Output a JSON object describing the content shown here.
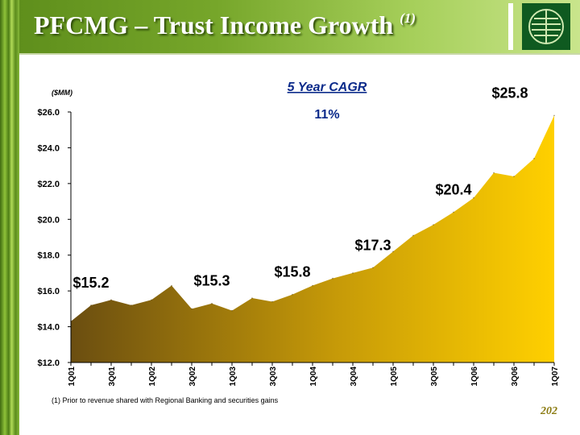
{
  "slide": {
    "title": "PFCMG – Trust Income Growth",
    "title_note": "(1)",
    "page_number": "202"
  },
  "colors": {
    "header_green": "#76a62a",
    "area_start": "#6b4e10",
    "area_end": "#ffd000",
    "label_cagr": "#0b2a8a"
  },
  "chart_data": {
    "type": "area",
    "title": "",
    "units_label": "($MM)",
    "cagr_title": "5 Year CAGR",
    "cagr_value": "11%",
    "xlabel": "",
    "ylabel": "",
    "ylim": [
      12.0,
      26.0
    ],
    "yticks": [
      "$12.0",
      "$14.0",
      "$16.0",
      "$18.0",
      "$20.0",
      "$22.0",
      "$24.0",
      "$26.0"
    ],
    "x": [
      "1Q01",
      "2Q01",
      "3Q01",
      "4Q01",
      "1Q02",
      "2Q02",
      "3Q02",
      "4Q02",
      "1Q03",
      "2Q03",
      "3Q03",
      "4Q03",
      "1Q04",
      "2Q04",
      "3Q04",
      "4Q04",
      "1Q05",
      "2Q05",
      "3Q05",
      "4Q05",
      "1Q06",
      "2Q06",
      "3Q06",
      "4Q06",
      "1Q07"
    ],
    "x_tick_labels": [
      "1Q01",
      "",
      "3Q01",
      "",
      "1Q02",
      "",
      "3Q02",
      "",
      "1Q03",
      "",
      "3Q03",
      "",
      "1Q04",
      "",
      "3Q04",
      "",
      "1Q05",
      "",
      "3Q05",
      "",
      "1Q06",
      "",
      "3Q06",
      "",
      "1Q07"
    ],
    "values": [
      14.3,
      15.2,
      15.5,
      15.2,
      15.5,
      16.3,
      15.0,
      15.3,
      14.9,
      15.6,
      15.4,
      15.8,
      16.3,
      16.7,
      17.0,
      17.3,
      18.2,
      19.1,
      19.7,
      20.4,
      21.2,
      22.6,
      22.4,
      23.4,
      25.8
    ],
    "annotations": [
      {
        "text": "$15.2",
        "x": "2Q01",
        "y": 15.2
      },
      {
        "text": "$15.3",
        "x": "4Q02",
        "y": 15.3
      },
      {
        "text": "$15.8",
        "x": "4Q03",
        "y": 15.8
      },
      {
        "text": "$17.3",
        "x": "4Q04",
        "y": 17.3
      },
      {
        "text": "$20.4",
        "x": "4Q05",
        "y": 20.4
      },
      {
        "text": "$25.8",
        "x": "1Q07",
        "y": 25.8
      }
    ],
    "grid": false,
    "legend": "none"
  },
  "footnote": "(1)  Prior to revenue shared with Regional Banking and securities gains"
}
